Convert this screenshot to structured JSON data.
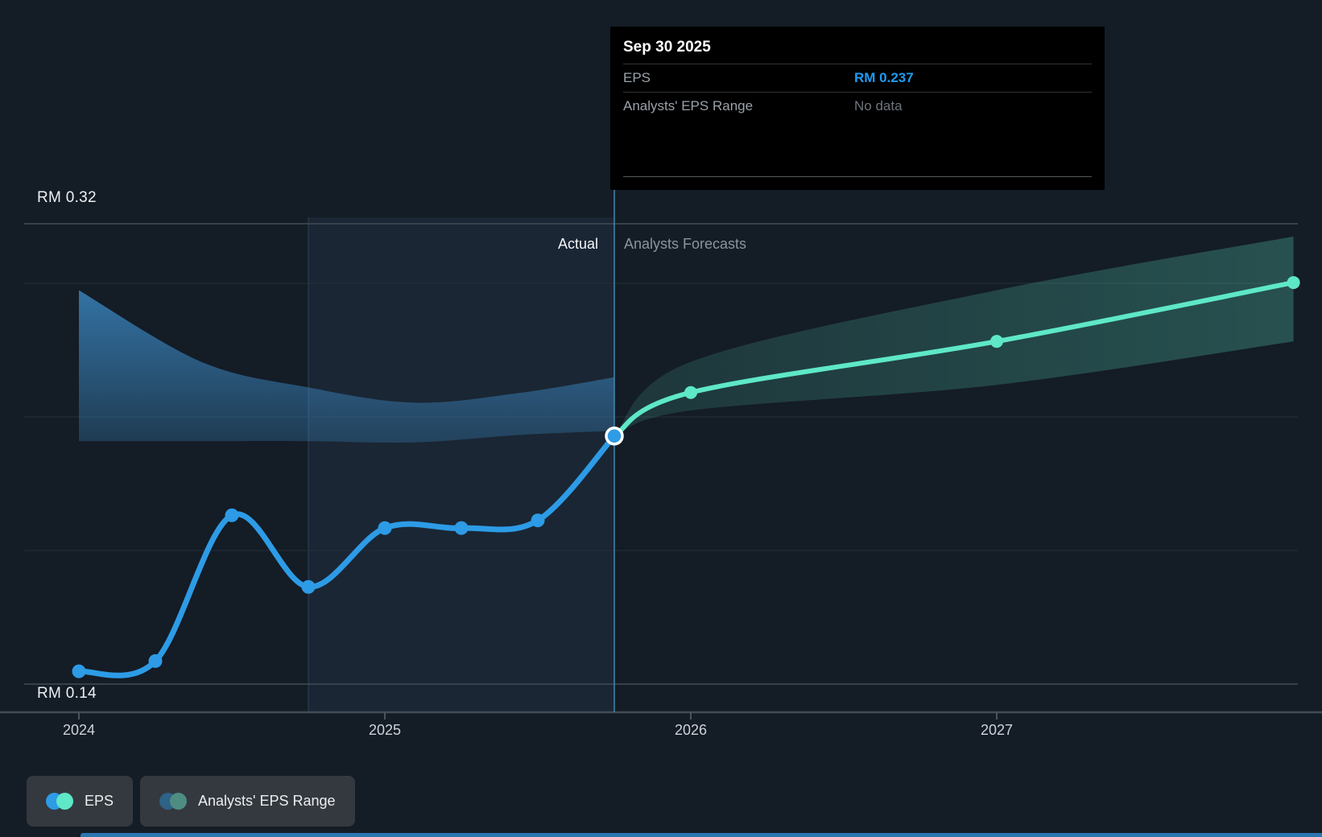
{
  "y_axis": {
    "max_label": "RM 0.32",
    "min_label": "RM 0.14"
  },
  "x_axis": {
    "ticks": [
      "2024",
      "2025",
      "2026",
      "2027"
    ]
  },
  "phase": {
    "actual": "Actual",
    "forecast": "Analysts Forecasts"
  },
  "tooltip": {
    "title": "Sep 30 2025",
    "rows": [
      {
        "label": "EPS",
        "value": "RM 0.237"
      },
      {
        "label": "Analysts' EPS Range",
        "value": "No data"
      }
    ]
  },
  "legend": [
    {
      "label": "EPS",
      "dot_colors": [
        "#2d9be6",
        "#5ee8c7"
      ]
    },
    {
      "label": "Analysts' EPS Range",
      "dot_colors": [
        "#2e6286",
        "#4f8d83"
      ]
    }
  ],
  "colors": {
    "background": "#141c26",
    "eps_line": "#2d9be6",
    "forecast_line": "#5ee8c7",
    "eps_value_text": "#1e9bf0",
    "bottom_strip": "#2b77b0",
    "historical_band": "#3f94d4",
    "forecast_band": "#5ee8c7"
  },
  "chart_data": {
    "type": "line",
    "currency_unit": "RM",
    "title": "EPS actual vs analysts forecasts",
    "ylabel": "EPS",
    "y_axis": {
      "min": 0.14,
      "max": 0.32,
      "min_label": "RM 0.14",
      "max_label": "RM 0.32"
    },
    "x_tick_years": [
      2024,
      2025,
      2026,
      2027
    ],
    "actual_until": "Sep 30 2025",
    "legend_position": "bottom-left",
    "grid": true,
    "series": [
      {
        "name": "EPS",
        "segment": "actual",
        "color": "#2d9be6",
        "points": [
          {
            "date": "Dec 31 2023",
            "t": 2024.0,
            "value": 0.145
          },
          {
            "date": "Mar 31 2024",
            "t": 2024.25,
            "value": 0.149
          },
          {
            "date": "Jun 30 2024",
            "t": 2024.5,
            "value": 0.206
          },
          {
            "date": "Sep 30 2024",
            "t": 2024.75,
            "value": 0.178
          },
          {
            "date": "Dec 31 2024",
            "t": 2025.0,
            "value": 0.201
          },
          {
            "date": "Mar 31 2025",
            "t": 2025.25,
            "value": 0.201
          },
          {
            "date": "Jun 30 2025",
            "t": 2025.5,
            "value": 0.204
          },
          {
            "date": "Sep 30 2025",
            "t": 2025.75,
            "value": 0.237,
            "highlight": true
          }
        ]
      },
      {
        "name": "EPS (analysts forecast)",
        "segment": "forecast",
        "color": "#5ee8c7",
        "points": [
          {
            "date": "Sep 30 2025",
            "t": 2025.75,
            "value": 0.237,
            "no_dot": true
          },
          {
            "date": "Dec 31 2025",
            "t": 2026.0,
            "value": 0.254
          },
          {
            "date": "Dec 31 2026",
            "t": 2027.0,
            "value": 0.274
          },
          {
            "date": "Dec 31 2027",
            "t": 2027.97,
            "value": 0.297
          }
        ]
      }
    ],
    "bands": [
      {
        "name": "Analysts' EPS Range (historical)",
        "color": "#3f94d4",
        "points": [
          {
            "t": 2024.0,
            "low": 0.235,
            "high": 0.294
          },
          {
            "t": 2024.4,
            "low": 0.235,
            "high": 0.266
          },
          {
            "t": 2024.75,
            "low": 0.235,
            "high": 0.256
          },
          {
            "t": 2025.1,
            "low": 0.2345,
            "high": 0.25
          },
          {
            "t": 2025.45,
            "low": 0.2375,
            "high": 0.254
          },
          {
            "t": 2025.75,
            "low": 0.239,
            "high": 0.26
          }
        ]
      },
      {
        "name": "Analysts' EPS Range (forecast)",
        "color": "#5ee8c7",
        "points": [
          {
            "t": 2025.75,
            "low": 0.237,
            "high": 0.237
          },
          {
            "t": 2026.0,
            "low": 0.247,
            "high": 0.266
          },
          {
            "t": 2027.0,
            "low": 0.257,
            "high": 0.294
          },
          {
            "t": 2027.97,
            "low": 0.274,
            "high": 0.315
          }
        ]
      }
    ]
  }
}
